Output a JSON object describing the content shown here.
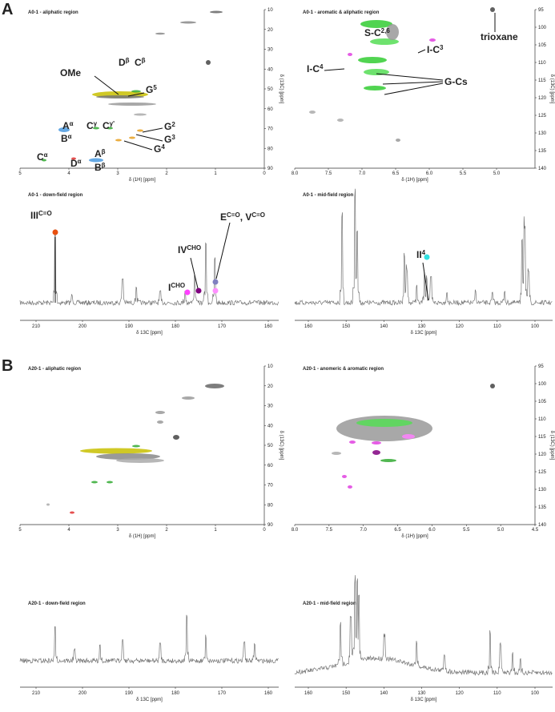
{
  "figure": {
    "sections": [
      {
        "label": "A",
        "panels": [
          {
            "title": "A0-1 - aliphatic region",
            "xlabel": "δ (1H) [ppm]",
            "ylabel": "δ (13C) [ppm]",
            "xticks": [
              "5",
              "4",
              "3",
              "2",
              "1",
              "0"
            ],
            "yticks": [
              "10",
              "20",
              "30",
              "40",
              "50",
              "60",
              "70",
              "80",
              "90"
            ],
            "annotations": [
              {
                "parts": [
                  {
                    "text": "OMe"
                  }
                ]
              },
              {
                "parts": [
                  {
                    "text": "D",
                    "sup": "β"
                  }
                ]
              },
              {
                "parts": [
                  {
                    "text": "C",
                    "sup": "β"
                  }
                ]
              },
              {
                "parts": [
                  {
                    "text": "G",
                    "sup": "5"
                  }
                ]
              },
              {
                "parts": [
                  {
                    "text": "G",
                    "sup": "2"
                  }
                ]
              },
              {
                "parts": [
                  {
                    "text": "G",
                    "sup": "3"
                  }
                ]
              },
              {
                "parts": [
                  {
                    "text": "G",
                    "sup": "4"
                  }
                ]
              },
              {
                "parts": [
                  {
                    "text": "A",
                    "sup": "α"
                  }
                ]
              },
              {
                "parts": [
                  {
                    "text": "B",
                    "sup": "α"
                  }
                ]
              },
              {
                "parts": [
                  {
                    "text": "C",
                    "sup": "γ"
                  }
                ]
              },
              {
                "parts": [
                  {
                    "text": "C",
                    "sup": "γ'"
                  }
                ]
              },
              {
                "parts": [
                  {
                    "text": "A",
                    "sup": "β"
                  }
                ]
              },
              {
                "parts": [
                  {
                    "text": "B",
                    "sup": "β"
                  }
                ]
              },
              {
                "parts": [
                  {
                    "text": "C",
                    "sup": "α"
                  }
                ]
              },
              {
                "parts": [
                  {
                    "text": "D",
                    "sup": "α"
                  }
                ]
              }
            ]
          },
          {
            "title": "A0-1 - aromatic & aliphatic region",
            "xlabel": "δ (1H) [ppm]",
            "ylabel": "δ (13C) [ppm]",
            "xticks": [
              "8.0",
              "7.5",
              "7.0",
              "6.5",
              "6.0",
              "5.5",
              "5.0"
            ],
            "yticks": [
              "95",
              "100",
              "105",
              "110",
              "115",
              "120",
              "125",
              "130",
              "135",
              "140"
            ],
            "annotations": [
              {
                "parts": [
                  {
                    "text": "S-C",
                    "sup": "2,6"
                  }
                ]
              },
              {
                "parts": [
                  {
                    "text": "I-C",
                    "sup": "3"
                  }
                ]
              },
              {
                "parts": [
                  {
                    "text": "I-C",
                    "sup": "4"
                  }
                ]
              },
              {
                "parts": [
                  {
                    "text": "G-Cs"
                  }
                ]
              },
              {
                "parts": [
                  {
                    "text": "trioxane"
                  }
                ]
              }
            ]
          },
          {
            "title": "A0-1 - down-field region",
            "xlabel": "δ 13C [ppm]",
            "xticks": [
              "210",
              "200",
              "190",
              "180",
              "170",
              "160"
            ],
            "annotations": [
              {
                "parts": [
                  {
                    "text": "III",
                    "sup": "C=O"
                  }
                ]
              },
              {
                "parts": [
                  {
                    "text": "IV",
                    "sup": "CHO"
                  }
                ]
              },
              {
                "parts": [
                  {
                    "text": "I",
                    "sup": "CHO"
                  }
                ]
              },
              {
                "parts": [
                  {
                    "text": "E",
                    "sup": "C=O"
                  },
                  {
                    "text": ", V",
                    "sup": "C=O"
                  }
                ]
              }
            ]
          },
          {
            "title": "A0-1 - mid-field region",
            "xlabel": "δ 13C [ppm]",
            "xticks": [
              "160",
              "150",
              "140",
              "130",
              "120",
              "110",
              "100"
            ],
            "annotations": [
              {
                "parts": [
                  {
                    "text": "II",
                    "sup": "4"
                  }
                ]
              }
            ]
          }
        ]
      },
      {
        "label": "B",
        "panels": [
          {
            "title": "A20-1 - aliphatic region",
            "xlabel": "δ (1H) [ppm]",
            "ylabel": "δ (13C) [ppm]",
            "xticks": [
              "5",
              "4",
              "3",
              "2",
              "1",
              "0"
            ],
            "yticks": [
              "10",
              "20",
              "30",
              "40",
              "50",
              "60",
              "70",
              "80",
              "90"
            ],
            "annotations": []
          },
          {
            "title": "A20-1 - anomeric & aromatic region",
            "xlabel": "δ (1H) [ppm]",
            "ylabel": "δ (13C) [ppm]",
            "xticks": [
              "8.0",
              "7.5",
              "7.0",
              "6.5",
              "6.0",
              "5.5",
              "5.0",
              "4.5"
            ],
            "yticks": [
              "95",
              "100",
              "105",
              "110",
              "115",
              "120",
              "125",
              "130",
              "135",
              "140"
            ],
            "annotations": []
          },
          {
            "title": "A20-1 - down-field region",
            "xlabel": "δ 13C [ppm]",
            "xticks": [
              "210",
              "200",
              "190",
              "180",
              "170",
              "160"
            ],
            "annotations": []
          },
          {
            "title": "A20-1 - mid-field region",
            "xlabel": "δ 13C [ppm]",
            "xticks": [
              "160",
              "150",
              "140",
              "130",
              "120",
              "110",
              "100"
            ],
            "annotations": []
          }
        ]
      }
    ]
  }
}
